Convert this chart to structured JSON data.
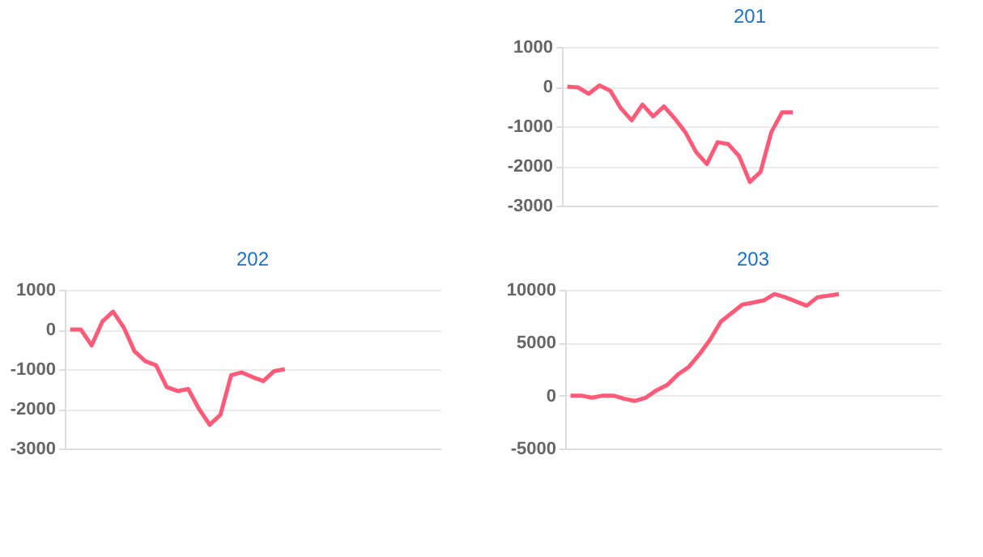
{
  "chart_data": [
    {
      "type": "line",
      "title": "201",
      "categories": [
        null,
        null,
        null,
        null,
        null,
        null,
        null,
        null,
        null,
        null,
        null,
        null,
        null,
        null,
        null,
        null,
        null,
        null,
        null,
        null,
        null,
        null,
        null,
        null,
        null,
        null,
        null,
        null,
        null,
        null,
        null,
        null,
        null,
        null,
        null
      ],
      "series": [
        {
          "color": "#ff5a78",
          "values": [
            0,
            -20,
            -180,
            30,
            -100,
            -550,
            -850,
            -450,
            -750,
            -500,
            -800,
            -1150,
            -1650,
            -1950,
            -1400,
            -1450,
            -1750,
            -2400,
            -2150,
            -1150,
            -650,
            -650,
            null,
            null,
            null,
            null,
            null,
            null,
            null,
            null,
            null,
            null,
            null,
            null,
            null
          ]
        }
      ],
      "ylim": [
        -3000,
        1000
      ],
      "yticks": [
        -3000,
        -2000,
        -1000,
        0,
        1000
      ],
      "grid": "y",
      "tick_labels": "y",
      "marker": "none",
      "line_style": "solid",
      "legend": false
    },
    {
      "type": "line",
      "title": "202",
      "categories": [
        null,
        null,
        null,
        null,
        null,
        null,
        null,
        null,
        null,
        null,
        null,
        null,
        null,
        null,
        null,
        null,
        null,
        null,
        null,
        null,
        null,
        null,
        null,
        null,
        null,
        null,
        null,
        null,
        null,
        null,
        null,
        null,
        null,
        null,
        null
      ],
      "series": [
        {
          "color": "#ff5a78",
          "values": [
            0,
            0,
            -400,
            200,
            450,
            50,
            -550,
            -800,
            -900,
            -1450,
            -1550,
            -1500,
            -2000,
            -2400,
            -2150,
            -1150,
            -1080,
            -1200,
            -1300,
            -1050,
            -1000,
            null,
            null,
            null,
            null,
            null,
            null,
            null,
            null,
            null,
            null,
            null,
            null,
            null,
            null
          ]
        }
      ],
      "ylim": [
        -3000,
        1000
      ],
      "yticks": [
        -3000,
        -2000,
        -1000,
        0,
        1000
      ],
      "grid": "y",
      "tick_labels": "y",
      "marker": "none",
      "line_style": "solid",
      "legend": false
    },
    {
      "type": "line",
      "title": "203",
      "categories": [
        null,
        null,
        null,
        null,
        null,
        null,
        null,
        null,
        null,
        null,
        null,
        null,
        null,
        null,
        null,
        null,
        null,
        null,
        null,
        null,
        null,
        null,
        null,
        null,
        null,
        null,
        null,
        null,
        null,
        null,
        null,
        null,
        null,
        null,
        null
      ],
      "series": [
        {
          "color": "#ff5a78",
          "values": [
            0,
            0,
            -200,
            0,
            0,
            -300,
            -500,
            -200,
            500,
            1000,
            2000,
            2700,
            3900,
            5300,
            7000,
            7800,
            8600,
            8800,
            9000,
            9600,
            9300,
            8900,
            8500,
            9300,
            9450,
            9600,
            null,
            null,
            null,
            null,
            null,
            null,
            null,
            null,
            null
          ]
        }
      ],
      "ylim": [
        -5000,
        10000
      ],
      "yticks": [
        -5000,
        0,
        5000,
        10000
      ],
      "grid": "y",
      "tick_labels": "y",
      "marker": "none",
      "line_style": "solid",
      "legend": false
    }
  ]
}
